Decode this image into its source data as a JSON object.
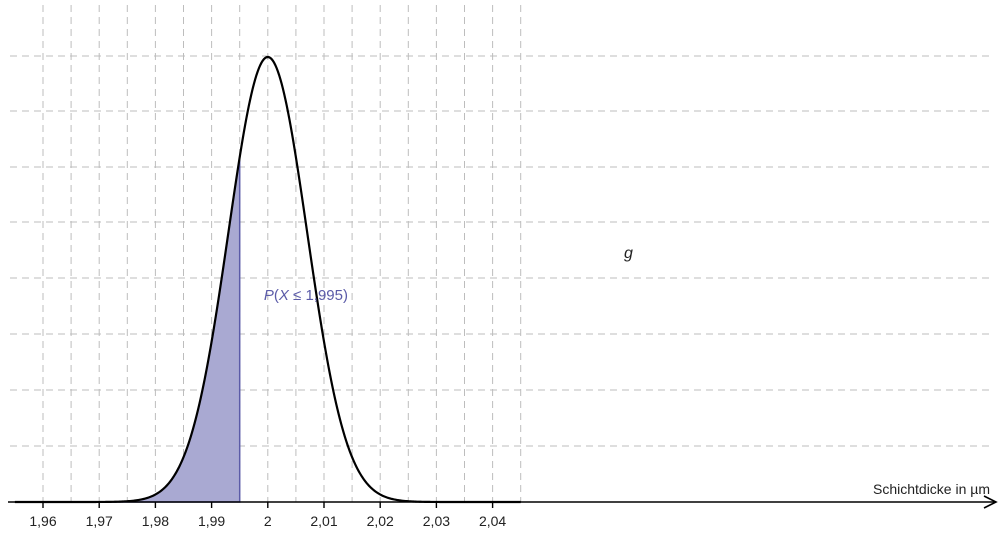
{
  "chart_data": {
    "type": "area",
    "distribution": "normal",
    "mu": 2,
    "sigma": 0.007,
    "xlim": [
      1.955,
      2.045
    ],
    "xticks": [
      1.96,
      1.97,
      1.98,
      1.99,
      2,
      2.01,
      2.02,
      2.03,
      2.04
    ],
    "xtick_labels": [
      "1,96",
      "1,97",
      "1,98",
      "1,99",
      "2",
      "2,01",
      "2,02",
      "2,03",
      "2,04"
    ],
    "xlabel": "Schichtdicke in µm",
    "shaded_upper": 1.995,
    "curve_label": "g",
    "area_label": "P(X ≤ 1,995)",
    "grid": true,
    "colors": {
      "curve": "#000000",
      "area_fill": "#a9a9d2",
      "area_stroke": "#5b5ba8",
      "grid": "#bdbdbd"
    }
  }
}
